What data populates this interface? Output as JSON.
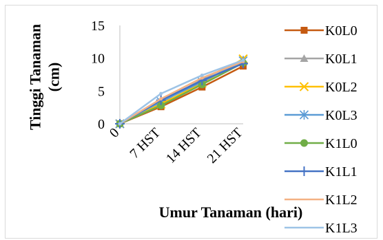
{
  "chart_data": {
    "type": "line",
    "categories": [
      "0",
      "7 HST",
      "14 HST",
      "21 HST"
    ],
    "xlabel": "Umur Tanaman (hari)",
    "ylabel": "Tinggi Tanaman (cm)",
    "ylabel_lines": [
      "Tinggi Tanaman",
      "(cm)"
    ],
    "ylim": [
      0,
      15
    ],
    "yticks": [
      0,
      5,
      10,
      15
    ],
    "grid": false,
    "legend_position": "right",
    "series": [
      {
        "name": "K0L0",
        "color": "#c55a11",
        "marker": "square",
        "values": [
          0,
          2.6,
          5.6,
          8.8
        ]
      },
      {
        "name": "K0L1",
        "color": "#a5a5a5",
        "marker": "triangle",
        "values": [
          0,
          3.2,
          6.8,
          9.8
        ]
      },
      {
        "name": "K0L2",
        "color": "#ffc000",
        "marker": "x",
        "values": [
          0,
          3.0,
          6.2,
          9.9
        ]
      },
      {
        "name": "K0L3",
        "color": "#5b9bd5",
        "marker": "asterisk",
        "values": [
          0,
          3.4,
          6.4,
          9.6
        ]
      },
      {
        "name": "K1L0",
        "color": "#70ad47",
        "marker": "circle",
        "values": [
          0,
          2.8,
          6.0,
          9.3
        ]
      },
      {
        "name": "K1L1",
        "color": "#4472c4",
        "marker": "plus",
        "values": [
          0,
          3.6,
          6.6,
          9.2
        ]
      },
      {
        "name": "K1L2",
        "color": "#f4b183",
        "marker": "line",
        "values": [
          0,
          3.8,
          7.0,
          9.5
        ]
      },
      {
        "name": "K1L3",
        "color": "#9dc3e6",
        "marker": "line",
        "values": [
          0,
          4.6,
          7.4,
          9.7
        ]
      }
    ]
  }
}
